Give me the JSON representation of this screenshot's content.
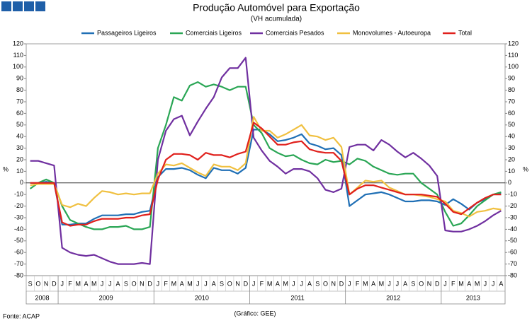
{
  "chart_data": {
    "type": "line",
    "title": "Produção Automóvel para Exportação",
    "subtitle": "(VH acumulada)",
    "y_label": "%",
    "source": "Fonte: ACAP",
    "credit": "(Gráfico: GEE)",
    "categories": [
      "S",
      "O",
      "N",
      "D",
      "J",
      "F",
      "M",
      "A",
      "M",
      "J",
      "J",
      "A",
      "S",
      "O",
      "N",
      "D",
      "J",
      "F",
      "M",
      "A",
      "M",
      "J",
      "J",
      "A",
      "S",
      "O",
      "N",
      "D",
      "J",
      "F",
      "M",
      "A",
      "M",
      "J",
      "J",
      "A",
      "S",
      "O",
      "N",
      "D",
      "J",
      "F",
      "M",
      "A",
      "M",
      "J",
      "J",
      "A",
      "S",
      "O",
      "N",
      "D",
      "J",
      "F",
      "M",
      "A",
      "M",
      "J",
      "J",
      "A"
    ],
    "year_groups": [
      {
        "label": "2008",
        "span": 4
      },
      {
        "label": "2009",
        "span": 12
      },
      {
        "label": "2010",
        "span": 12
      },
      {
        "label": "2011",
        "span": 12
      },
      {
        "label": "2012",
        "span": 12
      },
      {
        "label": "2013",
        "span": 8
      }
    ],
    "ylim": [
      -80,
      120
    ],
    "yticks": [
      -80,
      -70,
      -60,
      -50,
      -40,
      -30,
      -20,
      -10,
      0,
      10,
      20,
      30,
      40,
      50,
      60,
      70,
      80,
      90,
      100,
      110,
      120
    ],
    "legend": "top",
    "series": [
      {
        "name": "Passageiros Ligeiros",
        "color": "#1f6fb5",
        "values": [
          0,
          0,
          1,
          0,
          -36,
          -36,
          -35,
          -35,
          -31,
          -28,
          -28,
          -28,
          -27,
          -27,
          -25,
          -24,
          5,
          12,
          12,
          13,
          11,
          7,
          4,
          13,
          11,
          11,
          8,
          13,
          46,
          46,
          42,
          36,
          37,
          39,
          42,
          34,
          32,
          29,
          30,
          24,
          -20,
          -15,
          -10,
          -9,
          -8,
          -10,
          -13,
          -16,
          -16,
          -15,
          -15,
          -16,
          -19,
          -14,
          -18,
          -23,
          -17,
          -14,
          -10,
          -9
        ]
      },
      {
        "name": "Comerciais Ligeiros",
        "color": "#2aa655",
        "values": [
          -5,
          0,
          3,
          0,
          -20,
          -32,
          -35,
          -38,
          -40,
          -40,
          -38,
          -38,
          -37,
          -40,
          -40,
          -38,
          30,
          50,
          74,
          71,
          84,
          87,
          83,
          85,
          83,
          80,
          83,
          83,
          50,
          43,
          30,
          26,
          23,
          24,
          20,
          17,
          16,
          20,
          18,
          19,
          16,
          21,
          19,
          14,
          11,
          8,
          7,
          8,
          8,
          0,
          -5,
          -10,
          -25,
          -37,
          -35,
          -28,
          -20,
          -15,
          -10,
          -8
        ]
      },
      {
        "name": "Comerciais Pesados",
        "color": "#7030a0",
        "values": [
          19,
          19,
          17,
          15,
          -56,
          -60,
          -62,
          -63,
          -62,
          -65,
          -68,
          -70,
          -70,
          -70,
          -69,
          -70,
          20,
          45,
          55,
          58,
          41,
          53,
          64,
          74,
          91,
          99,
          99,
          108,
          39,
          28,
          19,
          14,
          8,
          12,
          12,
          10,
          4,
          -6,
          -8,
          -5,
          31,
          33,
          33,
          28,
          37,
          33,
          27,
          22,
          26,
          21,
          15,
          6,
          -41,
          -42,
          -42,
          -40,
          -37,
          -33,
          -28,
          -24
        ]
      },
      {
        "name": "Monovolumes - Autoeuropa",
        "color": "#f0c040",
        "values": [
          -2,
          -1,
          -1,
          -1,
          -19,
          -21,
          -18,
          -20,
          -13,
          -7,
          -8,
          -10,
          -9,
          -10,
          -9,
          -9,
          8,
          16,
          15,
          17,
          13,
          9,
          6,
          16,
          14,
          14,
          11,
          17,
          57,
          45,
          45,
          39,
          42,
          46,
          50,
          41,
          40,
          37,
          39,
          31,
          -10,
          -4,
          2,
          1,
          2,
          -4,
          -7,
          -10,
          -10,
          -11,
          -12,
          -14,
          -16,
          -24,
          -26,
          -29,
          -25,
          -24,
          -22,
          -23
        ]
      },
      {
        "name": "Total",
        "color": "#e0201c",
        "values": [
          0,
          0,
          0,
          0,
          -34,
          -37,
          -36,
          -36,
          -33,
          -31,
          -31,
          -31,
          -30,
          -30,
          -28,
          -27,
          3,
          20,
          25,
          25,
          24,
          20,
          26,
          24,
          24,
          22,
          25,
          27,
          52,
          47,
          40,
          33,
          33,
          35,
          36,
          29,
          27,
          26,
          26,
          19,
          -10,
          -5,
          -2,
          -2,
          -4,
          -6,
          -8,
          -10,
          -10,
          -10,
          -11,
          -12,
          -18,
          -25,
          -27,
          -22,
          -17,
          -13,
          -10,
          -10
        ]
      }
    ]
  }
}
